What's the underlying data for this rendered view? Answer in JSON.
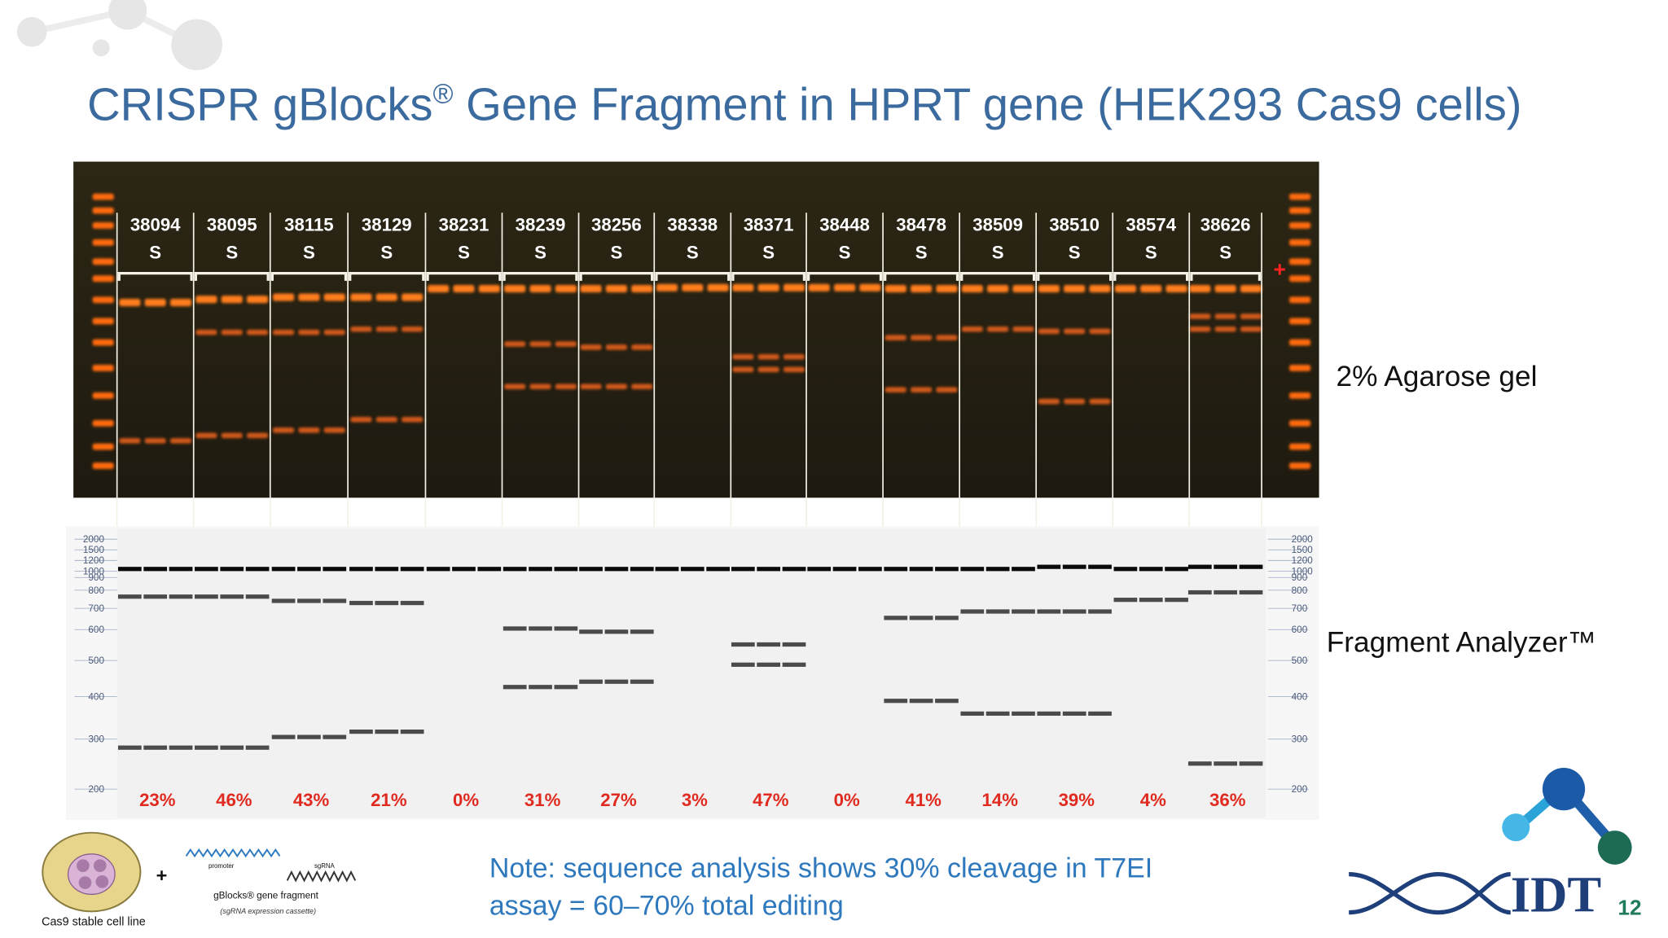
{
  "title": {
    "before": "CRISPR gBlocks",
    "mark": "®",
    "after": " Gene Fragment in HPRT gene (HEK293 Cas9 cells)"
  },
  "gel": {
    "samples": [
      "38094",
      "38095",
      "38115",
      "38129",
      "38231",
      "38239",
      "38256",
      "38338",
      "38371",
      "38448",
      "38478",
      "38509",
      "38510",
      "38574",
      "38626"
    ],
    "site_labels": [
      "S",
      "S",
      "S",
      "S",
      "S",
      "S",
      "S",
      "S",
      "S",
      "S",
      "S",
      "S",
      "S",
      "S",
      "S"
    ],
    "positive_mark": "+",
    "caption": "2% Agarose gel"
  },
  "fragment_analyzer": {
    "ladder": [
      2000,
      1500,
      1200,
      1000,
      900,
      800,
      700,
      600,
      500,
      400,
      300,
      200
    ],
    "cleavage": [
      "23%",
      "46%",
      "43%",
      "21%",
      "0%",
      "31%",
      "27%",
      "3%",
      "47%",
      "0%",
      "41%",
      "14%",
      "39%",
      "4%",
      "36%"
    ],
    "caption": "Fragment Analyzer™"
  },
  "diagram": {
    "plus": "+",
    "promoter": "promoter",
    "sgrna": "sgRNA",
    "fragment": "gBlocks® gene fragment",
    "cassette": "(sgRNA expression cassette)",
    "cell": "Cas9 stable cell line"
  },
  "note": [
    "Note: sequence analysis shows 30% cleavage in T7EI",
    "assay = 60–70% total editing"
  ],
  "logo": "IDT",
  "page_number": "12"
}
